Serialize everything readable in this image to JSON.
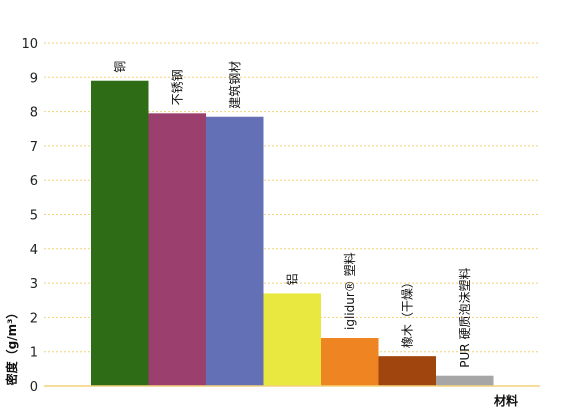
{
  "chart_data": {
    "type": "bar",
    "categories": [
      "铜",
      "不锈钢",
      "建筑钢材",
      "铝",
      "iglidur® 塑料",
      "橡木（干燥）",
      "PUR 硬质泡沫塑料"
    ],
    "values": [
      8.9,
      7.95,
      7.85,
      2.7,
      1.4,
      0.87,
      0.3
    ],
    "colors": [
      "#2e6d16",
      "#9b3f6f",
      "#6470b6",
      "#e9e840",
      "#ee8422",
      "#a0450e",
      "#a6a6a6"
    ],
    "xlabel": "材料",
    "ylabel": "密度（g/m³）",
    "ylim": [
      0,
      10
    ],
    "yticks": [
      0,
      1,
      2,
      3,
      4,
      5,
      6,
      7,
      8,
      9,
      10
    ],
    "grid": true,
    "grid_color": "#f3d27a",
    "axis_color": "#f3d27a"
  }
}
